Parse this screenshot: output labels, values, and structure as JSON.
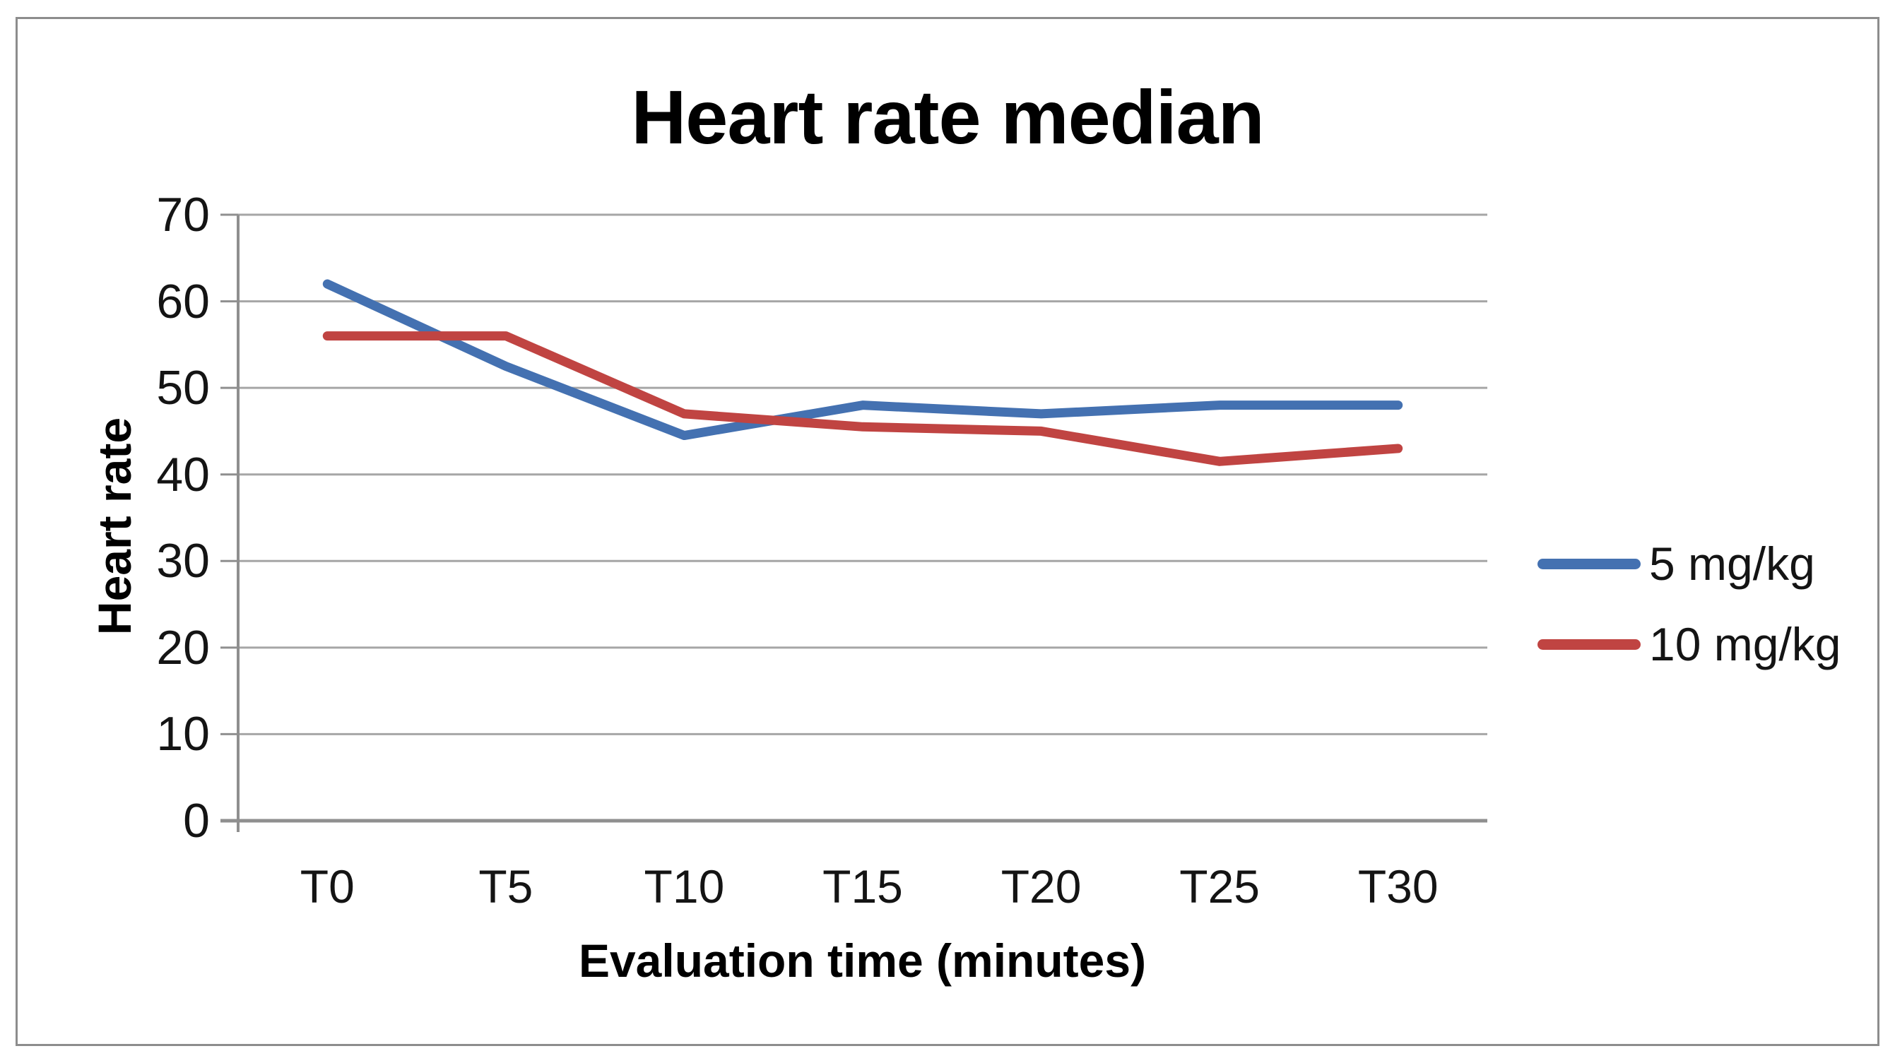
{
  "chart_data": {
    "type": "line",
    "title": "Heart rate median",
    "categories": [
      "T0",
      "T5",
      "T10",
      "T15",
      "T20",
      "T25",
      "T30"
    ],
    "series": [
      {
        "name": "5 mg/kg",
        "color": "#4471b1",
        "values": [
          62,
          52.5,
          44.5,
          48,
          47,
          48,
          48
        ]
      },
      {
        "name": "10 mg/kg",
        "color": "#c04442",
        "values": [
          56,
          56,
          47,
          45.5,
          45,
          41.5,
          43
        ]
      }
    ],
    "xlabel": "Evaluation time (minutes)",
    "ylabel": "Heart rate",
    "ylim": [
      0,
      70
    ],
    "y_ticks": [
      0,
      10,
      20,
      30,
      40,
      50,
      60,
      70
    ],
    "grid": true,
    "legend_position": "right",
    "axis_color": "#8f8f8f",
    "grid_color": "#a6a6a6",
    "border_color": "#8d8d8d",
    "text_color": "#000000"
  }
}
